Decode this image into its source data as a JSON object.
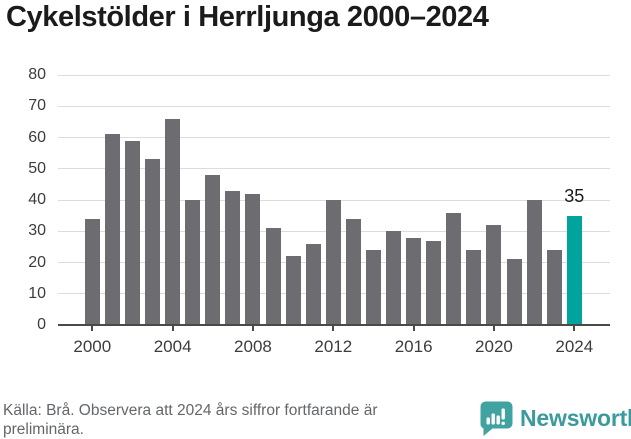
{
  "title": "Cykelstölder i Herrljunga 2000–2024",
  "chart_data": {
    "type": "bar",
    "title": "Cykelstölder i Herrljunga 2000–2024",
    "series_name": "Cykelstölder",
    "x": [
      2000,
      2001,
      2002,
      2003,
      2004,
      2005,
      2006,
      2007,
      2008,
      2009,
      2010,
      2011,
      2012,
      2013,
      2014,
      2015,
      2016,
      2017,
      2018,
      2019,
      2020,
      2021,
      2022,
      2023,
      2024
    ],
    "values": [
      34,
      61,
      59,
      53,
      66,
      40,
      48,
      43,
      42,
      31,
      22,
      26,
      40,
      34,
      24,
      30,
      28,
      27,
      36,
      24,
      32,
      21,
      40,
      24,
      35
    ],
    "ylim": [
      0,
      80
    ],
    "ytick_step": 10,
    "yticks": [
      0,
      10,
      20,
      30,
      40,
      50,
      60,
      70,
      80
    ],
    "xticks": [
      2000,
      2004,
      2008,
      2012,
      2016,
      2020,
      2024
    ],
    "grid": true,
    "legend": "none",
    "bar_color": "#6d6d71",
    "gridline_color": "#dcdcdc",
    "axis_color": "#4a4a4a",
    "highlight": {
      "year": 2024,
      "value": 35,
      "label": "35",
      "color": "#00a49c"
    }
  },
  "footer": {
    "source_text": "Källa: Brå. Observera att 2024 års siffror fortfarande är preliminära.",
    "brand": "Newsworthy",
    "brand_color": "#3a9a9c",
    "brand_icon": "newsworthy-speech-bubble-barchart-icon",
    "brand_icon_color": "#41a3a1"
  }
}
